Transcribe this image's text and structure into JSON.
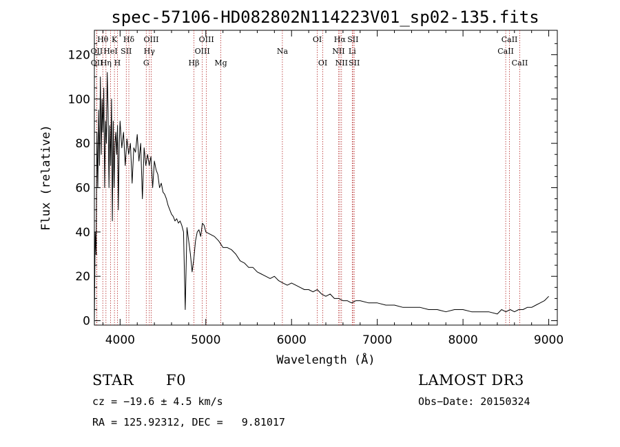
{
  "chart_data": {
    "type": "line",
    "title": "spec-57106-HD082802N114223V01_sp02-135.fits",
    "xlabel": "Wavelength (Å)",
    "ylabel": "Flux (relative)",
    "xlim": [
      3700,
      9100
    ],
    "ylim": [
      -2,
      131
    ],
    "xticks": [
      4000,
      5000,
      6000,
      7000,
      8000,
      9000
    ],
    "yticks": [
      0,
      20,
      40,
      60,
      80,
      100,
      120
    ],
    "series": [
      {
        "name": "flux",
        "x": [
          3700,
          3710,
          3720,
          3730,
          3740,
          3750,
          3760,
          3770,
          3780,
          3790,
          3800,
          3810,
          3820,
          3830,
          3840,
          3850,
          3860,
          3870,
          3880,
          3890,
          3900,
          3910,
          3920,
          3930,
          3940,
          3950,
          3960,
          3970,
          3980,
          3990,
          4000,
          4020,
          4040,
          4060,
          4080,
          4100,
          4120,
          4140,
          4160,
          4180,
          4200,
          4220,
          4240,
          4260,
          4280,
          4300,
          4320,
          4340,
          4360,
          4380,
          4400,
          4420,
          4440,
          4460,
          4480,
          4500,
          4520,
          4540,
          4560,
          4580,
          4600,
          4620,
          4640,
          4660,
          4680,
          4700,
          4720,
          4740,
          4760,
          4780,
          4800,
          4820,
          4840,
          4860,
          4880,
          4900,
          4920,
          4940,
          4960,
          4980,
          5000,
          5050,
          5100,
          5150,
          5200,
          5250,
          5300,
          5350,
          5400,
          5450,
          5500,
          5550,
          5600,
          5650,
          5700,
          5750,
          5800,
          5850,
          5900,
          5950,
          6000,
          6050,
          6100,
          6150,
          6200,
          6250,
          6300,
          6350,
          6400,
          6450,
          6500,
          6550,
          6600,
          6650,
          6700,
          6750,
          6800,
          6900,
          7000,
          7100,
          7200,
          7300,
          7400,
          7500,
          7600,
          7700,
          7800,
          7900,
          8000,
          8100,
          8200,
          8300,
          8400,
          8450,
          8500,
          8550,
          8600,
          8650,
          8700,
          8750,
          8800,
          8850,
          8900,
          8950,
          9000
        ],
        "y": [
          0,
          40,
          30,
          85,
          60,
          95,
          70,
          110,
          75,
          100,
          85,
          105,
          60,
          90,
          80,
          112,
          95,
          60,
          88,
          70,
          100,
          45,
          90,
          60,
          80,
          85,
          75,
          88,
          50,
          80,
          90,
          78,
          85,
          70,
          82,
          75,
          80,
          62,
          78,
          76,
          84,
          72,
          80,
          55,
          78,
          70,
          75,
          70,
          74,
          60,
          72,
          68,
          66,
          60,
          62,
          58,
          57,
          55,
          52,
          50,
          48,
          47,
          45,
          46,
          44,
          45,
          43,
          40,
          5,
          42,
          36,
          30,
          22,
          28,
          36,
          40,
          41,
          38,
          44,
          43,
          40,
          39,
          38,
          36,
          33,
          33,
          32,
          30,
          27,
          26,
          24,
          24,
          22,
          21,
          20,
          19,
          20,
          18,
          17,
          16,
          17,
          16,
          15,
          14,
          14,
          13,
          14,
          12,
          11,
          12,
          10,
          10,
          9,
          9,
          8,
          9,
          9,
          8,
          8,
          7,
          7,
          6,
          6,
          6,
          5,
          5,
          4,
          5,
          5,
          4,
          4,
          4,
          3,
          5,
          4,
          5,
          4,
          5,
          5,
          6,
          6,
          7,
          8,
          9,
          11
        ]
      }
    ],
    "lines": [
      {
        "label": "Hθ",
        "x": 3798,
        "row": 1
      },
      {
        "label": "OII",
        "x": 3727,
        "row": 2
      },
      {
        "label": "OII",
        "x": 3729,
        "row": 3
      },
      {
        "label": "Hη",
        "x": 3835,
        "row": 3
      },
      {
        "label": "HeI",
        "x": 3889,
        "row": 2
      },
      {
        "label": "K",
        "x": 3934,
        "row": 1
      },
      {
        "label": "H",
        "x": 3969,
        "row": 3
      },
      {
        "label": "SII",
        "x": 4072,
        "row": 2
      },
      {
        "label": "Hδ",
        "x": 4102,
        "row": 1
      },
      {
        "label": "G",
        "x": 4305,
        "row": 3
      },
      {
        "label": "Hγ",
        "x": 4341,
        "row": 2
      },
      {
        "label": "OIII",
        "x": 4363,
        "row": 1
      },
      {
        "label": "Hβ",
        "x": 4861,
        "row": 3
      },
      {
        "label": "OIII",
        "x": 4959,
        "row": 2
      },
      {
        "label": "OIII",
        "x": 5007,
        "row": 1
      },
      {
        "label": "Mg",
        "x": 5175,
        "row": 3
      },
      {
        "label": "Na",
        "x": 5893,
        "row": 2
      },
      {
        "label": "OI",
        "x": 6300,
        "row": 1
      },
      {
        "label": "OI",
        "x": 6364,
        "row": 3
      },
      {
        "label": "NII",
        "x": 6548,
        "row": 2
      },
      {
        "label": "Hα",
        "x": 6563,
        "row": 1
      },
      {
        "label": "NII",
        "x": 6583,
        "row": 3
      },
      {
        "label": "Li",
        "x": 6708,
        "row": 2
      },
      {
        "label": "SII",
        "x": 6716,
        "row": 1
      },
      {
        "label": "SII",
        "x": 6731,
        "row": 3
      },
      {
        "label": "CaII",
        "x": 8498,
        "row": 2
      },
      {
        "label": "CaII",
        "x": 8542,
        "row": 1
      },
      {
        "label": "CaII",
        "x": 8662,
        "row": 3
      }
    ],
    "line_color": "#b22222",
    "spectrum_color": "#000000"
  },
  "info": {
    "object_class": "STAR",
    "subclass": "F0",
    "survey": "LAMOST DR3",
    "cz": "cz = −19.6 ± 4.5 km/s",
    "obs_date": "Obs−Date: 20150324",
    "coords": "RA = 125.92312, DEC =   9.81017"
  }
}
